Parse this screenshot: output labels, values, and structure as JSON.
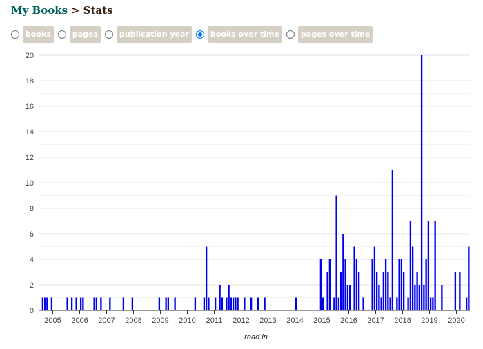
{
  "breadcrumb": {
    "root": "My Books",
    "separator": ">",
    "current": "Stats"
  },
  "view_options": [
    {
      "label": "books",
      "selected": false
    },
    {
      "label": "pages",
      "selected": false
    },
    {
      "label": "publication year",
      "selected": false
    },
    {
      "label": "books over time",
      "selected": true
    },
    {
      "label": "pages over time",
      "selected": false
    }
  ],
  "colors": {
    "bar": "#0000ee",
    "gridline": "#e6e6e6",
    "zero_line": "#333333",
    "chip": "#d6d0c4",
    "link": "#00635d"
  },
  "chart_data": {
    "type": "bar",
    "x_scale": "time",
    "xlabel": "read in",
    "ylabel": "",
    "ylim": [
      0,
      20
    ],
    "y_ticks": [
      0,
      2,
      4,
      6,
      8,
      10,
      12,
      14,
      16,
      18,
      20
    ],
    "x_ticks": [
      "2005",
      "2006",
      "2007",
      "2008",
      "2009",
      "2010",
      "2011",
      "2012",
      "2013",
      "2014",
      "2015",
      "2016",
      "2017",
      "2018",
      "2019",
      "2020"
    ],
    "xlim": [
      "2004-07",
      "2020-06"
    ],
    "grid": true,
    "series": [
      {
        "points": [
          {
            "x": "2004-08",
            "y": 1
          },
          {
            "x": "2004-09",
            "y": 1
          },
          {
            "x": "2004-10",
            "y": 1
          },
          {
            "x": "2004-12",
            "y": 1
          },
          {
            "x": "2005-07",
            "y": 1
          },
          {
            "x": "2005-09",
            "y": 1
          },
          {
            "x": "2005-11",
            "y": 1
          },
          {
            "x": "2006-01",
            "y": 1
          },
          {
            "x": "2006-02",
            "y": 1
          },
          {
            "x": "2006-07",
            "y": 1
          },
          {
            "x": "2006-08",
            "y": 1
          },
          {
            "x": "2006-10",
            "y": 1
          },
          {
            "x": "2007-02",
            "y": 1
          },
          {
            "x": "2007-08",
            "y": 1
          },
          {
            "x": "2007-12",
            "y": 1
          },
          {
            "x": "2008-12",
            "y": 1
          },
          {
            "x": "2009-03",
            "y": 1
          },
          {
            "x": "2009-04",
            "y": 1
          },
          {
            "x": "2009-07",
            "y": 1
          },
          {
            "x": "2010-04",
            "y": 1
          },
          {
            "x": "2010-08",
            "y": 1
          },
          {
            "x": "2010-09",
            "y": 5
          },
          {
            "x": "2010-10",
            "y": 1
          },
          {
            "x": "2011-01",
            "y": 1
          },
          {
            "x": "2011-03",
            "y": 2
          },
          {
            "x": "2011-04",
            "y": 1
          },
          {
            "x": "2011-06",
            "y": 1
          },
          {
            "x": "2011-07",
            "y": 2
          },
          {
            "x": "2011-08",
            "y": 1
          },
          {
            "x": "2011-09",
            "y": 1
          },
          {
            "x": "2011-10",
            "y": 1
          },
          {
            "x": "2011-11",
            "y": 1
          },
          {
            "x": "2012-02",
            "y": 1
          },
          {
            "x": "2012-05",
            "y": 1
          },
          {
            "x": "2012-08",
            "y": 1
          },
          {
            "x": "2012-11",
            "y": 1
          },
          {
            "x": "2014-01",
            "y": 1
          },
          {
            "x": "2014-12",
            "y": 4
          },
          {
            "x": "2015-01",
            "y": 1
          },
          {
            "x": "2015-03",
            "y": 3
          },
          {
            "x": "2015-04",
            "y": 4
          },
          {
            "x": "2015-06",
            "y": 1
          },
          {
            "x": "2015-07",
            "y": 9
          },
          {
            "x": "2015-08",
            "y": 1
          },
          {
            "x": "2015-09",
            "y": 3
          },
          {
            "x": "2015-10",
            "y": 6
          },
          {
            "x": "2015-11",
            "y": 4
          },
          {
            "x": "2015-12",
            "y": 2
          },
          {
            "x": "2016-01",
            "y": 2
          },
          {
            "x": "2016-03",
            "y": 5
          },
          {
            "x": "2016-04",
            "y": 4
          },
          {
            "x": "2016-05",
            "y": 3
          },
          {
            "x": "2016-07",
            "y": 1
          },
          {
            "x": "2016-11",
            "y": 4
          },
          {
            "x": "2016-12",
            "y": 5
          },
          {
            "x": "2017-01",
            "y": 3
          },
          {
            "x": "2017-02",
            "y": 2
          },
          {
            "x": "2017-03",
            "y": 1
          },
          {
            "x": "2017-04",
            "y": 3
          },
          {
            "x": "2017-05",
            "y": 4
          },
          {
            "x": "2017-06",
            "y": 3
          },
          {
            "x": "2017-07",
            "y": 1
          },
          {
            "x": "2017-08",
            "y": 11
          },
          {
            "x": "2017-10",
            "y": 1
          },
          {
            "x": "2017-11",
            "y": 4
          },
          {
            "x": "2017-12",
            "y": 4
          },
          {
            "x": "2018-01",
            "y": 3
          },
          {
            "x": "2018-03",
            "y": 1
          },
          {
            "x": "2018-04",
            "y": 7
          },
          {
            "x": "2018-05",
            "y": 5
          },
          {
            "x": "2018-06",
            "y": 2
          },
          {
            "x": "2018-07",
            "y": 3
          },
          {
            "x": "2018-08",
            "y": 2
          },
          {
            "x": "2018-09",
            "y": 20
          },
          {
            "x": "2018-10",
            "y": 2
          },
          {
            "x": "2018-11",
            "y": 4
          },
          {
            "x": "2018-12",
            "y": 7
          },
          {
            "x": "2019-01",
            "y": 1
          },
          {
            "x": "2019-02",
            "y": 1
          },
          {
            "x": "2019-03",
            "y": 7
          },
          {
            "x": "2019-06",
            "y": 2
          },
          {
            "x": "2019-12",
            "y": 3
          },
          {
            "x": "2020-02",
            "y": 3
          },
          {
            "x": "2020-05",
            "y": 1
          },
          {
            "x": "2020-06",
            "y": 5
          }
        ]
      }
    ]
  }
}
